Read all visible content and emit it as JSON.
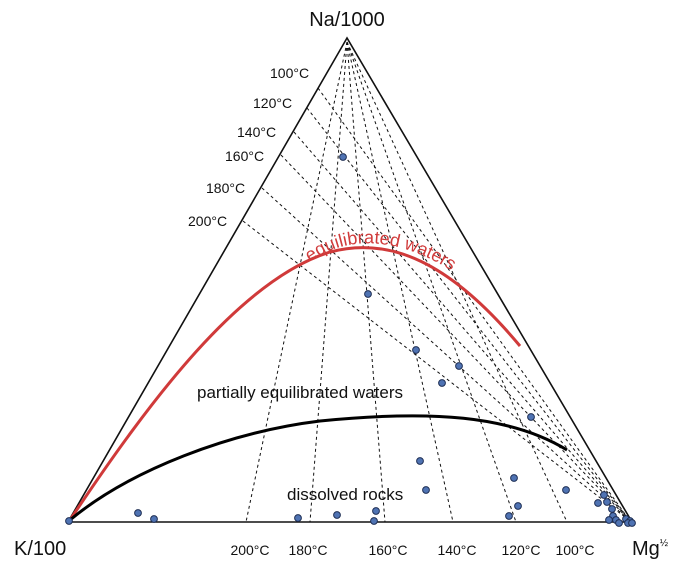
{
  "vertices": {
    "top": "Na/1000",
    "left": "K/100",
    "right_base": "Mg",
    "right_exponent": "½"
  },
  "na_k_isotherms": [
    "100°C",
    "120°C",
    "140°C",
    "160°C",
    "180°C",
    "200°C"
  ],
  "k_mg_isotherms": [
    "200°C",
    "180°C",
    "160°C",
    "140°C",
    "120°C",
    "100°C"
  ],
  "regions": {
    "equilibrated": "equilibrated waters",
    "partial": "partially equilibrated waters",
    "immature": "dissolved rocks"
  },
  "colors": {
    "full_equilibrium_line": "#d03a3a",
    "immature_line": "#000000",
    "sample_fill": "#4f73b3",
    "sample_stroke": "#1f2f55",
    "isotherm": "#000000"
  },
  "samples_count_visible": 31
}
